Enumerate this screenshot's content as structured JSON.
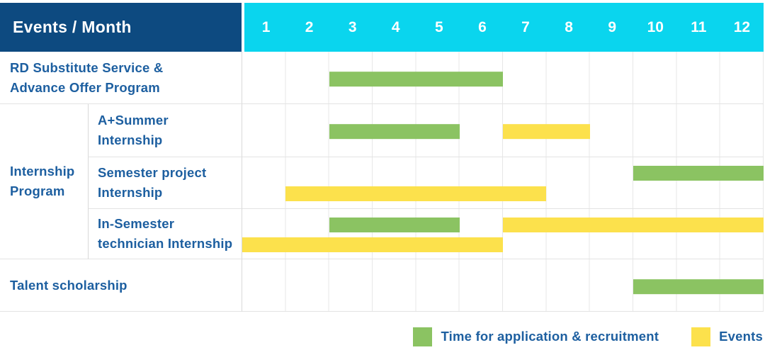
{
  "colors": {
    "navy": "#0d4a80",
    "cyan": "#0ad5ee",
    "green": "#8bc362",
    "yellow": "#fce14c",
    "textblue": "#1d5fa0",
    "grid": "#e3e3e3",
    "divider": "#d9d9d9"
  },
  "header": {
    "title": "Events / Month",
    "months": [
      "1",
      "2",
      "3",
      "4",
      "5",
      "6",
      "7",
      "8",
      "9",
      "10",
      "11",
      "12"
    ]
  },
  "side": {
    "group_label": "Internship Program",
    "group_label_lines": [
      "Internship",
      "Program"
    ],
    "row_label_lines": [
      [
        "RD Substitute Service &",
        "Advance Offer Program"
      ],
      [
        "A+Summer",
        "Internship"
      ],
      [
        "Semester project",
        "Internship"
      ],
      [
        "In-Semester",
        "technician Internship"
      ],
      [
        "Talent scholarship"
      ]
    ]
  },
  "legend": {
    "items": [
      {
        "label": "Time for application & recruitment",
        "color": "green"
      },
      {
        "label": "Events",
        "color": "yellow"
      }
    ]
  },
  "chart_data": {
    "type": "gantt",
    "title": "Events / Month",
    "x_axis": {
      "label": "Month",
      "ticks": [
        "1",
        "2",
        "3",
        "4",
        "5",
        "6",
        "7",
        "8",
        "9",
        "10",
        "11",
        "12"
      ],
      "range": [
        1,
        12
      ],
      "grid": "dotted-vertical"
    },
    "legend_position": "bottom-right",
    "series_meaning": {
      "green": "Time for application & recruitment",
      "yellow": "Events"
    },
    "rows": [
      {
        "label": "RD Substitute Service & Advance Offer Program",
        "group": null,
        "lines": 1,
        "bars": [
          {
            "series": "Time for application & recruitment",
            "color": "green",
            "start_month": 3,
            "end_month": 6,
            "line": 1
          }
        ]
      },
      {
        "label": "A+Summer Internship",
        "group": "Internship Program",
        "lines": 1,
        "bars": [
          {
            "series": "Time for application & recruitment",
            "color": "green",
            "start_month": 3,
            "end_month": 5,
            "line": 1
          },
          {
            "series": "Events",
            "color": "yellow",
            "start_month": 7,
            "end_month": 8,
            "line": 1
          }
        ]
      },
      {
        "label": "Semester project Internship",
        "group": "Internship Program",
        "lines": 2,
        "bars": [
          {
            "series": "Time for application & recruitment",
            "color": "green",
            "start_month": 10,
            "end_month": 12,
            "line": 1
          },
          {
            "series": "Events",
            "color": "yellow",
            "start_month": 2,
            "end_month": 7,
            "line": 2
          }
        ]
      },
      {
        "label": "In-Semester technician Internship",
        "group": "Internship Program",
        "lines": 2,
        "bars": [
          {
            "series": "Time for application & recruitment",
            "color": "green",
            "start_month": 3,
            "end_month": 5,
            "line": 1
          },
          {
            "series": "Events",
            "color": "yellow",
            "start_month": 7,
            "end_month": 12,
            "line": 1
          },
          {
            "series": "Events",
            "color": "yellow",
            "start_month": 1,
            "end_month": 6,
            "line": 2
          }
        ]
      },
      {
        "label": "Talent scholarship",
        "group": null,
        "lines": 1,
        "bars": [
          {
            "series": "Time for application & recruitment",
            "color": "green",
            "start_month": 10,
            "end_month": 12,
            "line": 1
          }
        ]
      }
    ]
  }
}
